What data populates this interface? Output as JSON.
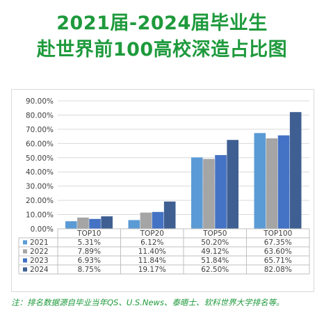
{
  "title_line1": "2021届-2024届毕业生",
  "title_line2": "赴世界前100高校深造占比图",
  "footnote": "注：排名数据源自毕业当年QS、U.S.News、泰晤士、软科世界大学排名等。",
  "chart_data": {
    "type": "bar",
    "categories": [
      "TOP10",
      "TOP20",
      "TOP50",
      "TOP100"
    ],
    "series": [
      {
        "name": "2021",
        "values": [
          5.31,
          6.12,
          50.2,
          67.35
        ],
        "labels": [
          "5.31%",
          "6.12%",
          "50.20%",
          "67.35%"
        ],
        "color": "#5b9bd5"
      },
      {
        "name": "2022",
        "values": [
          7.89,
          11.4,
          49.12,
          63.6
        ],
        "labels": [
          "7.89%",
          "11.40%",
          "49.12%",
          "63.60%"
        ],
        "color": "#a5a5a5"
      },
      {
        "name": "2023",
        "values": [
          6.93,
          11.84,
          51.84,
          65.71
        ],
        "labels": [
          "6.93%",
          "11.84%",
          "51.84%",
          "65.71%"
        ],
        "color": "#4472c4"
      },
      {
        "name": "2024",
        "values": [
          8.75,
          19.17,
          62.5,
          82.08
        ],
        "labels": [
          "8.75%",
          "19.17%",
          "62.50%",
          "82.08%"
        ],
        "color": "#3f5f92"
      }
    ],
    "yticks": [
      "0.00%",
      "10.00%",
      "20.00%",
      "30.00%",
      "40.00%",
      "50.00%",
      "60.00%",
      "70.00%",
      "80.00%",
      "90.00%"
    ],
    "ylim": [
      0,
      90
    ],
    "grid": true,
    "legend": "data-table"
  }
}
